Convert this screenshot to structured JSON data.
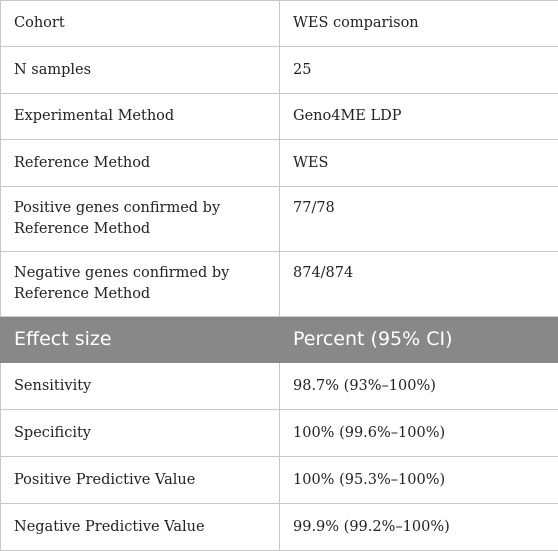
{
  "rows_top": [
    {
      "label": "Cohort",
      "value": "WES comparison"
    },
    {
      "label": "N samples",
      "value": "25"
    },
    {
      "label": "Experimental Method",
      "value": "Geno4ME LDP"
    },
    {
      "label": "Reference Method",
      "value": "WES"
    },
    {
      "label": "Positive genes confirmed by Reference Method",
      "value": "77/78"
    },
    {
      "label": "Negative genes confirmed by Reference Method",
      "value": "874/874"
    }
  ],
  "header": {
    "col1": "Effect size",
    "col2": "Percent (95% CI)"
  },
  "rows_bottom": [
    {
      "label": "Sensitivity",
      "value": "98.7% (93%–100%)"
    },
    {
      "label": "Specificity",
      "value": "100% (99.6%–100%)"
    },
    {
      "label": "Positive Predictive Value",
      "value": "100% (95.3%–100%)"
    },
    {
      "label": "Negative Predictive Value",
      "value": "99.9% (99.2%–100%)"
    }
  ]
}
